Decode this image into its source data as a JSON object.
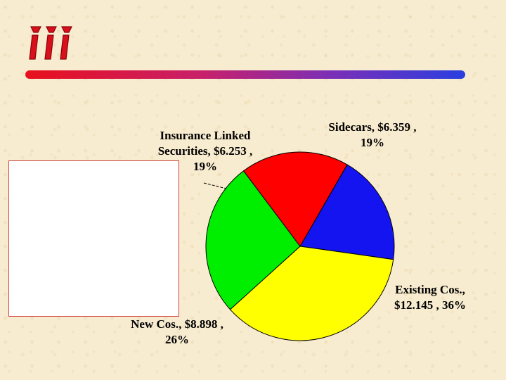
{
  "logo": {
    "text": "iii",
    "color": "#d8101c"
  },
  "colors": {
    "rule_start": "#e8101c",
    "rule_end": "#2a3fe0"
  },
  "chart_data": {
    "type": "pie",
    "title": "",
    "slices": [
      {
        "name": "Sidecars",
        "value": 6.359,
        "percent": 19,
        "color": "#1414f0",
        "label_lines": [
          "Sidecars, $6.359 ,",
          "19%"
        ]
      },
      {
        "name": "Existing Cos.",
        "value": 12.145,
        "percent": 36,
        "color": "#ffff00",
        "label_lines": [
          "Existing Cos.,",
          "$12.145 , 36%"
        ]
      },
      {
        "name": "New Cos.",
        "value": 8.898,
        "percent": 26,
        "color": "#00ee00",
        "label_lines": [
          "New Cos., $8.898 ,",
          "26%"
        ]
      },
      {
        "name": "Insurance Linked Securities",
        "value": 6.253,
        "percent": 19,
        "color": "#ff0000",
        "label_lines": [
          "Insurance Linked",
          "Securities, $6.253 ,",
          "19%"
        ]
      }
    ],
    "start_angle_deg": 30
  }
}
